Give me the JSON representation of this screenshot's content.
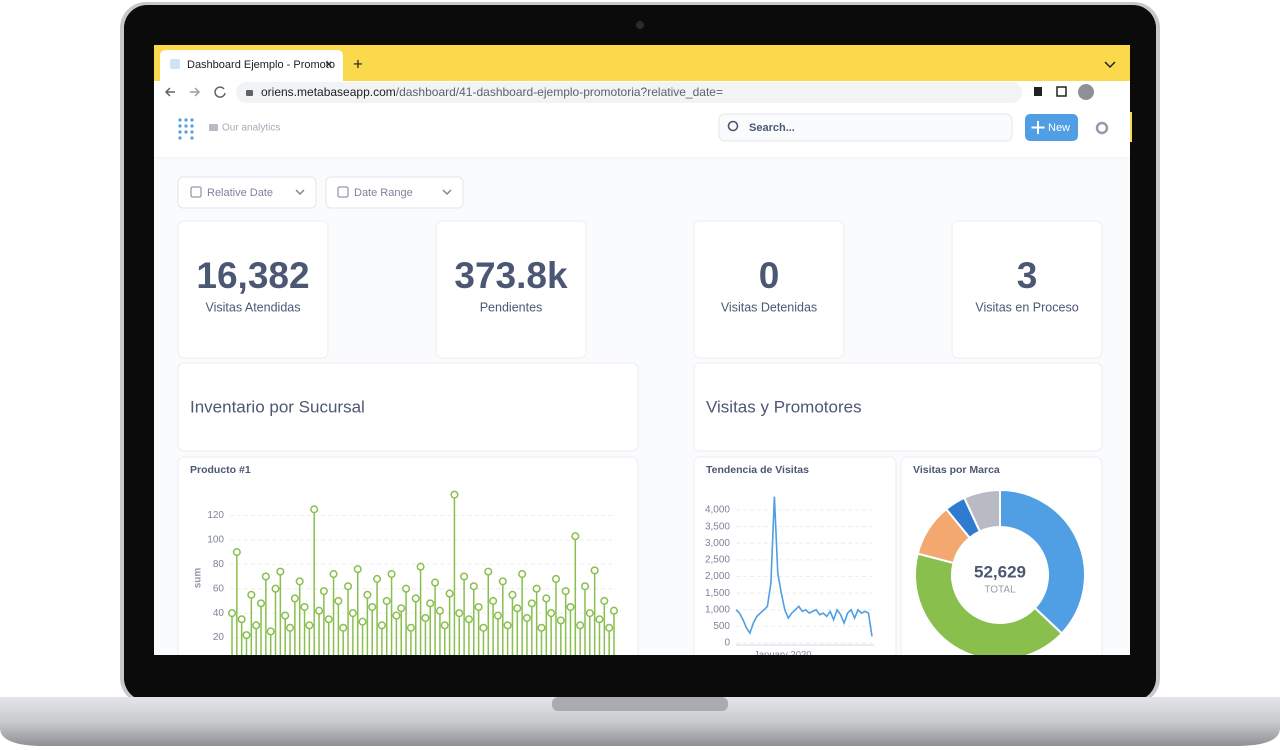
{
  "browser": {
    "tab_title": "Dashboard Ejemplo - Promoto",
    "url_host": "oriens.metabaseapp.com",
    "url_path": "/dashboard/41-dashboard-ejemplo-promotoria?relative_date="
  },
  "app": {
    "breadcrumb": "Our analytics",
    "search_placeholder": "Search...",
    "new_button": "New"
  },
  "filters": [
    "Relative Date",
    "Date Range"
  ],
  "kpis": [
    {
      "value": "16,382",
      "label": "Visitas Atendidas"
    },
    {
      "value": "373.8k",
      "label": "Pendientes"
    },
    {
      "value": "0",
      "label": "Visitas Detenidas"
    },
    {
      "value": "3",
      "label": "Visitas en Proceso"
    }
  ],
  "sections": [
    "Inventario por Sucursal",
    "Visitas y Promotores"
  ],
  "charts": {
    "inventory": {
      "type": "lollipop",
      "title": "Producto #1",
      "y_label": "sum",
      "color": "#88bf4d",
      "ylim": [
        0,
        140
      ],
      "yticks": [
        20,
        40,
        60,
        80,
        100,
        120
      ],
      "grid": true,
      "values": [
        40,
        90,
        35,
        22,
        55,
        30,
        48,
        70,
        25,
        60,
        74,
        38,
        28,
        52,
        66,
        45,
        30,
        125,
        42,
        58,
        35,
        72,
        50,
        28,
        62,
        40,
        76,
        33,
        55,
        45,
        68,
        30,
        50,
        72,
        38,
        44,
        60,
        28,
        52,
        78,
        36,
        48,
        65,
        42,
        30,
        56,
        137,
        40,
        70,
        35,
        62,
        45,
        28,
        74,
        50,
        38,
        66,
        30,
        55,
        44,
        72,
        36,
        48,
        60,
        28,
        52,
        40,
        68,
        34,
        58,
        45,
        103,
        30,
        62,
        40,
        75,
        35,
        50,
        28,
        42
      ]
    },
    "trend": {
      "type": "line",
      "title": "Tendencia de Visitas",
      "x_label": "January 2020",
      "color": "#509ee3",
      "ylim": [
        0,
        4500
      ],
      "grid": true,
      "yticks": [
        0,
        500,
        {
          "value": 1000,
          "label": "1,000"
        },
        {
          "value": 1500,
          "label": "1,500"
        },
        {
          "value": 2000,
          "label": "2,000"
        },
        {
          "value": 2500,
          "label": "2,500"
        },
        {
          "value": 3000,
          "label": "3,000"
        },
        {
          "value": 3500,
          "label": "3,500"
        },
        {
          "value": 4000,
          "label": "4,000"
        }
      ],
      "values": [
        1000,
        900,
        700,
        450,
        300,
        600,
        800,
        900,
        1000,
        1100,
        1800,
        4400,
        2100,
        1500,
        1000,
        750,
        900,
        1000,
        1100,
        950,
        1000,
        900,
        950,
        1000,
        850,
        900,
        800,
        950,
        700,
        1000,
        850,
        600,
        900,
        1000,
        750,
        1000,
        900,
        950,
        900,
        200
      ]
    },
    "brands": {
      "type": "pie",
      "title": "Visitas por Marca",
      "total": "52,629",
      "total_label": "TOTAL",
      "values": [
        19500,
        22100,
        5300,
        2100,
        3629
      ],
      "colors": [
        "#509ee3",
        "#88bf4d",
        "#f2a86f",
        "#2f7bd0",
        "#b8bbc3"
      ]
    }
  }
}
